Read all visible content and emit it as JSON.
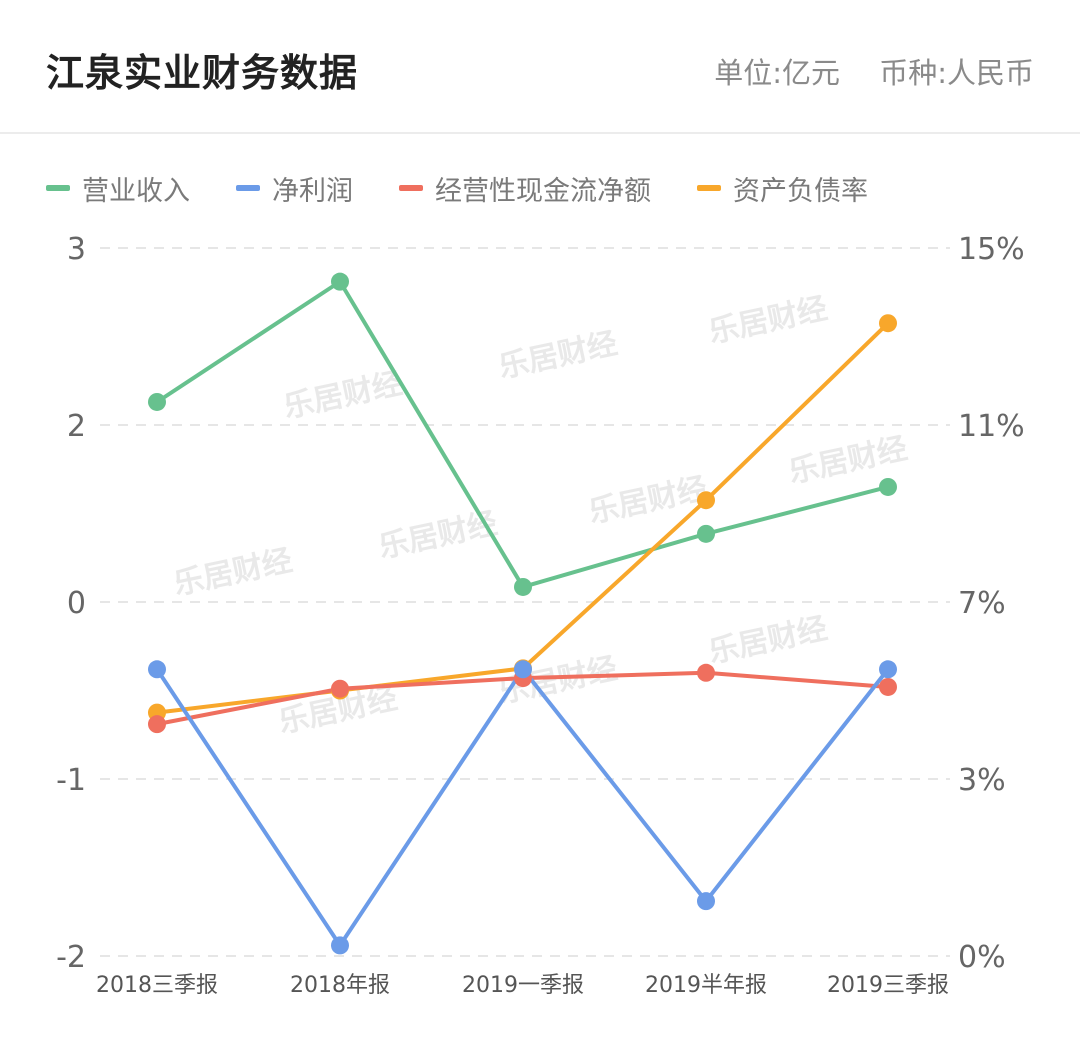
{
  "header": {
    "title": "江泉实业财务数据",
    "unit": "单位:亿元",
    "currency": "币种:人民币"
  },
  "watermark": "乐居财经",
  "chart_data": {
    "type": "line",
    "categories": [
      "2018三季报",
      "2018年报",
      "2019一季报",
      "2019半年报",
      "2019三季报"
    ],
    "y_left": {
      "ticks": [
        "3",
        "2",
        "0",
        "-1",
        "-2"
      ],
      "tick_values": [
        3,
        2,
        0,
        -1,
        -2
      ],
      "range": [
        -2,
        3
      ]
    },
    "y_right": {
      "ticks": [
        "15%",
        "11%",
        "7%",
        "3%",
        "0%"
      ],
      "tick_values": [
        15,
        11,
        7,
        3,
        0
      ],
      "range": [
        0,
        15
      ]
    },
    "grid": "dashed horizontal",
    "legend_position": "top-left",
    "series": [
      {
        "name": "营业收入",
        "axis": "left",
        "color": "#67c18e",
        "values": [
          2.13,
          2.81,
          0.17,
          0.77,
          1.3
        ]
      },
      {
        "name": "净利润",
        "axis": "left",
        "color": "#6b9be8",
        "values": [
          -0.38,
          -1.94,
          -0.38,
          -1.69,
          -0.38
        ]
      },
      {
        "name": "经营性现金流净额",
        "axis": "left",
        "color": "#ef6f5e",
        "values": [
          -0.69,
          -0.49,
          -0.43,
          -0.4,
          -0.48
        ]
      },
      {
        "name": "资产负债率",
        "axis": "right",
        "unit": "%",
        "color": "#f8a72b",
        "values": [
          4.5,
          5.0,
          5.5,
          9.3,
          13.3
        ]
      }
    ]
  }
}
